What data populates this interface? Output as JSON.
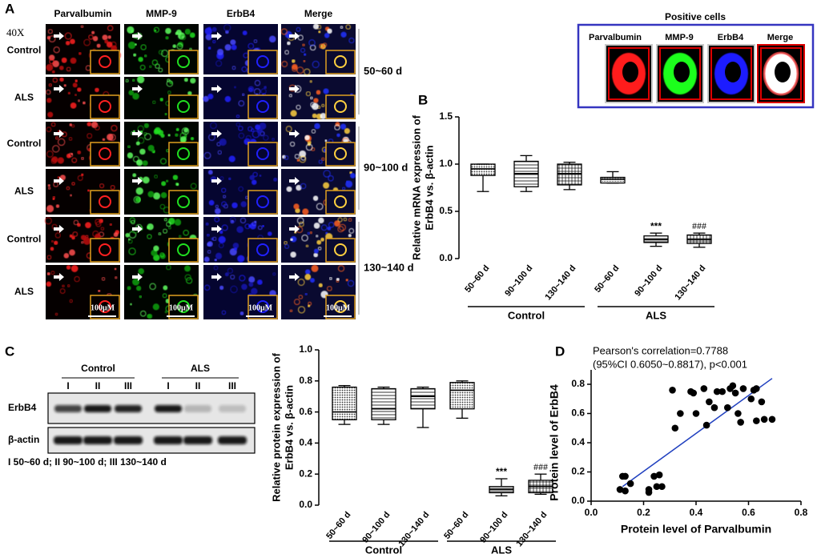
{
  "panel_labels": [
    "A",
    "B",
    "C",
    "D"
  ],
  "panel_a": {
    "magnification": "40X",
    "columns": [
      "Parvalbumin",
      "MMP-9",
      "ErbB4",
      "Merge"
    ],
    "rows": [
      "Control",
      "ALS",
      "Control",
      "ALS",
      "Control",
      "ALS"
    ],
    "ages": [
      "50~60 d",
      "90~100 d",
      "130~140 d"
    ],
    "scale_bars": [
      "100μM",
      "100μM",
      "100μM",
      "100μM"
    ]
  },
  "positive_cells": {
    "title": "Positive cells",
    "columns": [
      "Parvalbumin",
      "MMP-9",
      "ErbB4",
      "Merge"
    ]
  },
  "panel_c_blot": {
    "groups": [
      "Control",
      "ALS"
    ],
    "lanes": [
      "I",
      "II",
      "III",
      "I",
      "II",
      "III"
    ],
    "rows": [
      "ErbB4",
      "β-actin"
    ],
    "caption": "I 50~60 d; II 90~100 d; III 130~140 d"
  },
  "chart_data": [
    {
      "type": "box",
      "y_label": [
        "Relative mRNA expression of",
        "ErbB4 vs. β-actin"
      ],
      "categories": [
        "50~60 d",
        "90~100 d",
        "130~140 d",
        "50~60 d",
        "90~100 d",
        "130~140 d"
      ],
      "groups": [
        "Control",
        "ALS"
      ],
      "boxes": [
        {
          "min": 0.71,
          "q1": 0.88,
          "median": 0.95,
          "q3": 1.0,
          "max": 1.0
        },
        {
          "min": 0.71,
          "q1": 0.76,
          "median": 0.9,
          "q3": 1.03,
          "max": 1.09
        },
        {
          "min": 0.73,
          "q1": 0.78,
          "median": 0.9,
          "q3": 1.0,
          "max": 1.02
        },
        {
          "min": 0.8,
          "q1": 0.8,
          "median": 0.84,
          "q3": 0.86,
          "max": 0.92
        },
        {
          "min": 0.13,
          "q1": 0.17,
          "median": 0.2,
          "q3": 0.24,
          "max": 0.27
        },
        {
          "min": 0.12,
          "q1": 0.16,
          "median": 0.2,
          "q3": 0.25,
          "max": 0.27
        }
      ],
      "fills": [
        "dots",
        "hlines",
        "grid",
        "fine",
        "hlines",
        "grid"
      ],
      "annotations": [
        null,
        null,
        null,
        null,
        "***",
        "###"
      ],
      "ylim": [
        0,
        1.5
      ],
      "yticks": [
        {
          "value": 0,
          "label": "0.0"
        },
        0.5,
        {
          "value": 1,
          "label": "1.0"
        },
        1.5
      ]
    },
    {
      "type": "box",
      "y_label": [
        "Relative protein expression of",
        "ErbB4 vs. β-actin"
      ],
      "categories": [
        "50~60 d",
        "90~100 d",
        "130~140 d",
        "50~60 d",
        "90~100 d",
        "130~140 d"
      ],
      "groups": [
        "Control",
        "ALS"
      ],
      "boxes": [
        {
          "min": 0.52,
          "q1": 0.55,
          "median": 0.6,
          "q3": 0.76,
          "max": 0.77
        },
        {
          "min": 0.52,
          "q1": 0.55,
          "median": 0.62,
          "q3": 0.75,
          "max": 0.76
        },
        {
          "min": 0.5,
          "q1": 0.62,
          "median": 0.7,
          "q3": 0.75,
          "max": 0.76
        },
        {
          "min": 0.56,
          "q1": 0.62,
          "median": 0.74,
          "q3": 0.79,
          "max": 0.8
        },
        {
          "min": 0.06,
          "q1": 0.08,
          "median": 0.1,
          "q3": 0.12,
          "max": 0.17
        },
        {
          "min": 0.07,
          "q1": 0.08,
          "median": 0.12,
          "q3": 0.16,
          "max": 0.2
        }
      ],
      "fills": [
        "dots",
        "hlines",
        "hlines",
        "dots",
        "hlines",
        "grid"
      ],
      "annotations": [
        null,
        null,
        null,
        null,
        "***",
        "###"
      ],
      "ylim": [
        0,
        1
      ],
      "yticks": [
        {
          "value": 0,
          "label": "0.0"
        },
        0.2,
        0.4,
        0.6,
        0.8,
        {
          "value": 1,
          "label": "1.0"
        }
      ]
    },
    {
      "type": "scatter",
      "x_label": "Protein level of Parvalbumin",
      "y_label": "Protein level of ErbB4",
      "annotation": [
        "Pearson's correlation=0.7788",
        "(95%CI 0.6050~0.8817), p<0.001"
      ],
      "x": [
        0.11,
        0.12,
        0.13,
        0.15,
        0.13,
        0.22,
        0.22,
        0.24,
        0.25,
        0.26,
        0.27,
        0.31,
        0.32,
        0.34,
        0.38,
        0.39,
        0.4,
        0.43,
        0.44,
        0.45,
        0.47,
        0.48,
        0.5,
        0.52,
        0.53,
        0.54,
        0.55,
        0.56,
        0.57,
        0.58,
        0.61,
        0.62,
        0.63,
        0.65,
        0.66,
        0.69,
        0.63
      ],
      "values": [
        0.08,
        0.17,
        0.17,
        0.12,
        0.07,
        0.08,
        0.06,
        0.17,
        0.1,
        0.18,
        0.1,
        0.76,
        0.5,
        0.6,
        0.75,
        0.74,
        0.6,
        0.77,
        0.52,
        0.68,
        0.64,
        0.75,
        0.75,
        0.64,
        0.77,
        0.79,
        0.74,
        0.6,
        0.54,
        0.77,
        0.7,
        0.76,
        0.77,
        0.68,
        0.56,
        0.56,
        0.55
      ],
      "color": "#000000",
      "fit_line": {
        "x": [
          0.12,
          0.69
        ],
        "values": [
          0.1,
          0.84
        ],
        "color": "#1f3fbf"
      },
      "xlim": [
        0,
        0.8
      ],
      "ylim": [
        0,
        0.8
      ],
      "xticks": [
        {
          "value": 0,
          "label": "0.0"
        },
        0.2,
        0.4,
        0.6,
        0.8
      ],
      "yticks": [
        {
          "value": 0,
          "label": "0.0"
        },
        0.2,
        0.4,
        0.6,
        0.8
      ]
    }
  ]
}
